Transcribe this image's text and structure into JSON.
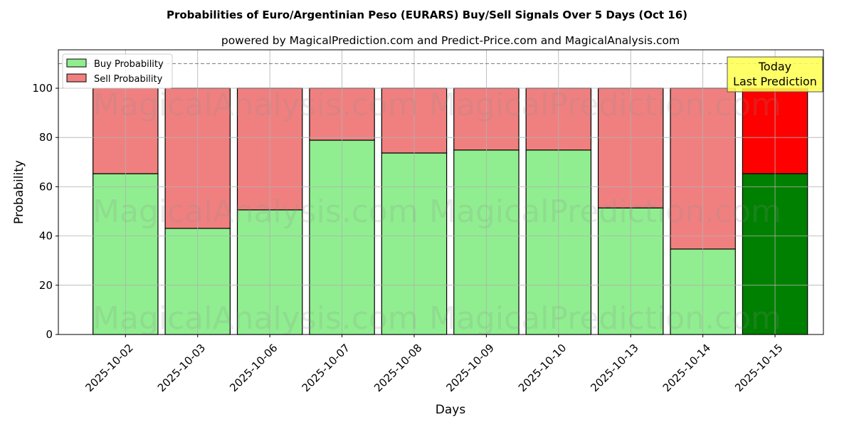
{
  "chart_data": {
    "type": "bar",
    "title": "Probabilities of Euro/Argentinian Peso (EURARS) Buy/Sell Signals Over 5 Days (Oct 16)",
    "subtitle": "powered by MagicalPrediction.com and Predict-Price.com and MagicalAnalysis.com",
    "xlabel": "Days",
    "ylabel": "Probability",
    "ylim": [
      0,
      115.6
    ],
    "yticks": [
      0,
      20,
      40,
      60,
      80,
      100
    ],
    "grid": true,
    "categories": [
      "2025-10-02",
      "2025-10-03",
      "2025-10-06",
      "2025-10-07",
      "2025-10-08",
      "2025-10-09",
      "2025-10-10",
      "2025-10-13",
      "2025-10-14",
      "2025-10-15"
    ],
    "series": [
      {
        "name": "Buy Probability",
        "values": [
          65.3,
          43.1,
          50.6,
          78.9,
          73.7,
          74.9,
          74.9,
          51.4,
          34.7,
          65.3
        ],
        "color": "#90ee90",
        "highlight_color": "#008000"
      },
      {
        "name": "Sell Probability",
        "values": [
          34.7,
          56.9,
          49.4,
          21.1,
          26.3,
          25.1,
          25.1,
          48.6,
          65.3,
          34.7
        ],
        "color": "#f08080",
        "highlight_color": "#ff0000"
      }
    ],
    "reference_line": 110,
    "legend_placement": "top-left",
    "annotation": {
      "line1": "Today",
      "line2": "Last Prediction",
      "color": "#ffff4d"
    },
    "watermarks": [
      "MagicalAnalysis.com",
      "MagicalPrediction.com"
    ]
  }
}
